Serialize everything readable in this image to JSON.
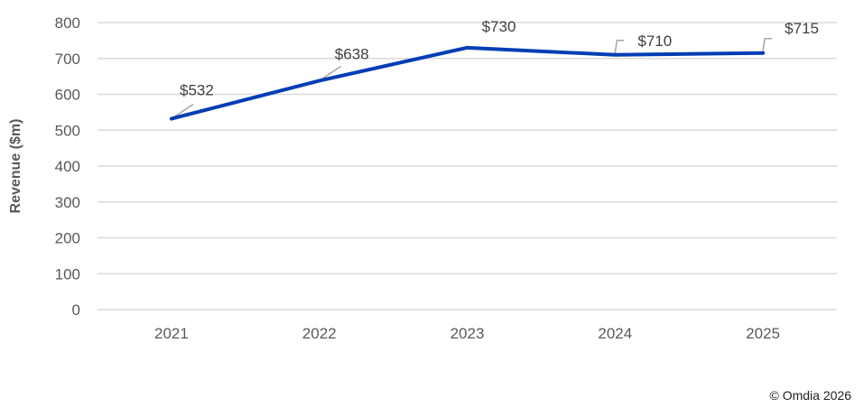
{
  "chart_data": {
    "type": "line",
    "title": "",
    "xlabel": "",
    "ylabel": "Revenue ($m)",
    "categories": [
      "2021",
      "2022",
      "2023",
      "2024",
      "2025"
    ],
    "series": [
      {
        "name": "Revenue",
        "values": [
          532,
          638,
          730,
          710,
          715
        ],
        "color": "#003DB5"
      }
    ],
    "data_labels": [
      "$532",
      "$638",
      "$730",
      "$710",
      "$715"
    ],
    "ylim": [
      0,
      800
    ],
    "yticks": [
      0,
      100,
      200,
      300,
      400,
      500,
      600,
      700,
      800
    ],
    "grid": true,
    "legend": "none"
  },
  "footer": {
    "copyright": "© Omdia 2026"
  },
  "colors": {
    "line": "#003DB5",
    "grid": "#D9D9D9",
    "text": "#595959",
    "leader": "#A6A6A6"
  }
}
